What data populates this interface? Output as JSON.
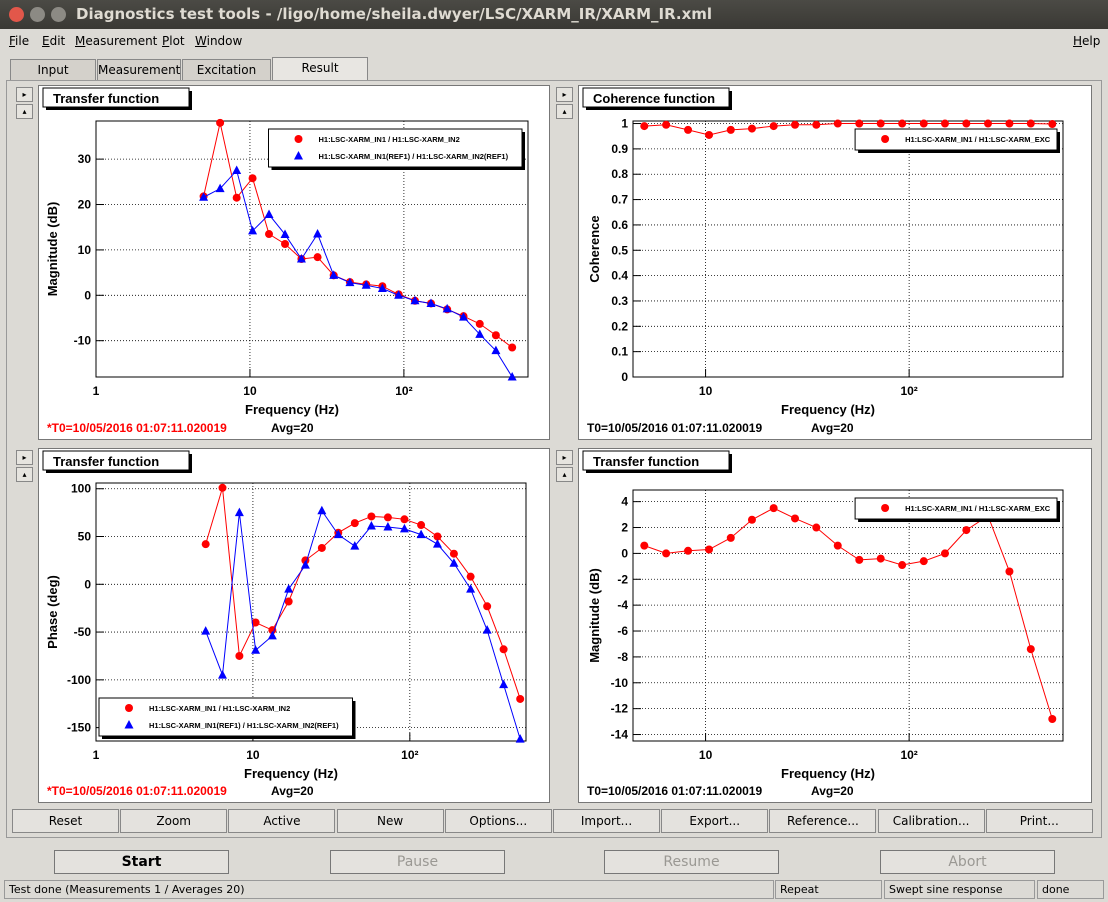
{
  "window": {
    "title": "Diagnostics test tools - /ligo/home/sheila.dwyer/LSC/XARM_IR/XARM_IR.xml"
  },
  "menu": [
    "File",
    "Edit",
    "Measurement",
    "Plot",
    "Window"
  ],
  "help": "Help",
  "tabs": [
    "Input",
    "Measurement",
    "Excitation",
    "Result"
  ],
  "chart_data": [
    {
      "type": "line",
      "title": "Transfer function",
      "xlabel": "Frequency (Hz)",
      "ylabel": "Magnitude (dB)",
      "log_x": true,
      "grid": true,
      "legend": "upper right",
      "x": [
        5,
        6.4,
        8.2,
        10.4,
        13.3,
        16.9,
        21.6,
        27.5,
        35,
        44.6,
        56.9,
        72.5,
        92.4,
        118,
        150,
        191,
        244,
        311,
        396,
        505
      ],
      "xlim": [
        1,
        640
      ],
      "xticks": [
        1,
        10,
        {
          "value": 100,
          "label": "10²"
        }
      ],
      "ylim": [
        -18,
        38.4
      ],
      "yticks": [
        -10,
        0,
        10,
        20,
        30
      ],
      "series": [
        {
          "name": "H1:LSC-XARM_IN1 / H1:LSC-XARM_IN2",
          "color": "#ff0000",
          "marker": "circle",
          "values": [
            21.8,
            38,
            21.5,
            25.8,
            13.5,
            11.3,
            8,
            8.4,
            4.4,
            2.9,
            2.4,
            2,
            0.2,
            -1.2,
            -1.8,
            -3.1,
            -4.6,
            -6.3,
            -8.8,
            -11.5
          ]
        },
        {
          "name": "H1:LSC-XARM_IN1(REF1) / H1:LSC-XARM_IN2(REF1)",
          "color": "#0000ff",
          "marker": "triangle",
          "values": [
            21.6,
            23.5,
            27.5,
            14.2,
            17.8,
            13.4,
            8,
            13.5,
            4.4,
            2.8,
            2.2,
            1.5,
            0,
            -1.2,
            -1.8,
            -3,
            -4.8,
            -8.6,
            -12.2,
            -18
          ]
        }
      ],
      "timestamp": "*T0=10/05/2016 01:07:11.020019",
      "timestamp_color": "#ff0000",
      "averages": "Avg=20"
    },
    {
      "type": "line",
      "title": "Coherence function",
      "xlabel": "Frequency (Hz)",
      "ylabel": "Coherence",
      "log_x": true,
      "grid": true,
      "legend": "upper right",
      "x": [
        5,
        6.4,
        8.2,
        10.4,
        13.3,
        16.9,
        21.6,
        27.5,
        35,
        44.6,
        56.9,
        72.5,
        92.4,
        118,
        150,
        191,
        244,
        311,
        396,
        505
      ],
      "xlim": [
        4.4,
        570
      ],
      "xticks": [
        10,
        {
          "value": 100,
          "label": "10²"
        }
      ],
      "ylim": [
        0,
        1.01
      ],
      "yticks": [
        0,
        0.1,
        0.2,
        0.3,
        0.4,
        0.5,
        0.6,
        0.7,
        0.8,
        0.9,
        1
      ],
      "series": [
        {
          "name": "H1:LSC-XARM_IN1 / H1:LSC-XARM_EXC",
          "color": "#ff0000",
          "marker": "circle",
          "values": [
            0.99,
            0.995,
            0.975,
            0.955,
            0.975,
            0.98,
            0.99,
            0.995,
            0.995,
            1,
            1,
            1,
            1,
            1,
            1,
            1,
            1,
            1,
            1,
            0.998
          ]
        }
      ],
      "timestamp": "T0=10/05/2016 01:07:11.020019",
      "timestamp_color": "#000000",
      "averages": "Avg=20"
    },
    {
      "type": "line",
      "title": "Transfer function",
      "xlabel": "Frequency (Hz)",
      "ylabel": "Phase (deg)",
      "log_x": true,
      "grid": true,
      "legend": "lower left",
      "x": [
        5,
        6.4,
        8.2,
        10.4,
        13.3,
        16.9,
        21.6,
        27.5,
        35,
        44.6,
        56.9,
        72.5,
        92.4,
        118,
        150,
        191,
        244,
        311,
        396,
        505
      ],
      "xlim": [
        1,
        550
      ],
      "xticks": [
        1,
        10,
        {
          "value": 100,
          "label": "10²"
        }
      ],
      "ylim": [
        -164,
        106
      ],
      "yticks": [
        -150,
        -100,
        -50,
        0,
        50,
        100
      ],
      "series": [
        {
          "name": "H1:LSC-XARM_IN1 / H1:LSC-XARM_IN2",
          "color": "#ff0000",
          "marker": "circle",
          "values": [
            42,
            101,
            -75,
            -40,
            -48,
            -18,
            25,
            38,
            54,
            64,
            71,
            70,
            68,
            62,
            50,
            32,
            8,
            -23,
            -68,
            -120
          ]
        },
        {
          "name": "H1:LSC-XARM_IN1(REF1) / H1:LSC-XARM_IN2(REF1)",
          "color": "#0000ff",
          "marker": "triangle",
          "values": [
            -49,
            -95,
            75,
            -69,
            -54,
            -5,
            20,
            77,
            52,
            40,
            61,
            60,
            58,
            52,
            42,
            22,
            -5,
            -48,
            -105,
            -162
          ]
        }
      ],
      "timestamp": "*T0=10/05/2016 01:07:11.020019",
      "timestamp_color": "#ff0000",
      "averages": "Avg=20"
    },
    {
      "type": "line",
      "title": "Transfer function",
      "xlabel": "Frequency (Hz)",
      "ylabel": "Magnitude (dB)",
      "log_x": true,
      "grid": true,
      "legend": "upper right",
      "x": [
        5,
        6.4,
        8.2,
        10.4,
        13.3,
        16.9,
        21.6,
        27.5,
        35,
        44.6,
        56.9,
        72.5,
        92.4,
        118,
        150,
        191,
        244,
        311,
        396,
        505
      ],
      "xlim": [
        4.4,
        570
      ],
      "xticks": [
        10,
        {
          "value": 100,
          "label": "10²"
        }
      ],
      "ylim": [
        -14.5,
        4.9
      ],
      "yticks": [
        -14,
        -12,
        -10,
        -8,
        -6,
        -4,
        -2,
        0,
        2,
        4
      ],
      "series": [
        {
          "name": "H1:LSC-XARM_IN1 / H1:LSC-XARM_EXC",
          "color": "#ff0000",
          "marker": "circle",
          "values": [
            0.6,
            0,
            0.2,
            0.3,
            1.2,
            2.6,
            3.5,
            2.7,
            2,
            0.6,
            -0.5,
            -0.4,
            -0.9,
            -0.6,
            0,
            1.8,
            2.9,
            -1.4,
            -7.4,
            -12.8
          ]
        }
      ],
      "timestamp": "T0=10/05/2016 01:07:11.020019",
      "timestamp_color": "#000000",
      "averages": "Avg=20"
    }
  ],
  "buttons": [
    "Reset",
    "Zoom",
    "Active",
    "New",
    "Options...",
    "Import...",
    "Export...",
    "Reference...",
    "Calibration...",
    "Print..."
  ],
  "controls": [
    "Start",
    "Pause",
    "Resume",
    "Abort"
  ],
  "status": [
    "Test done (Measurements 1 / Averages 20)",
    "Repeat",
    "Swept sine response",
    "done"
  ]
}
